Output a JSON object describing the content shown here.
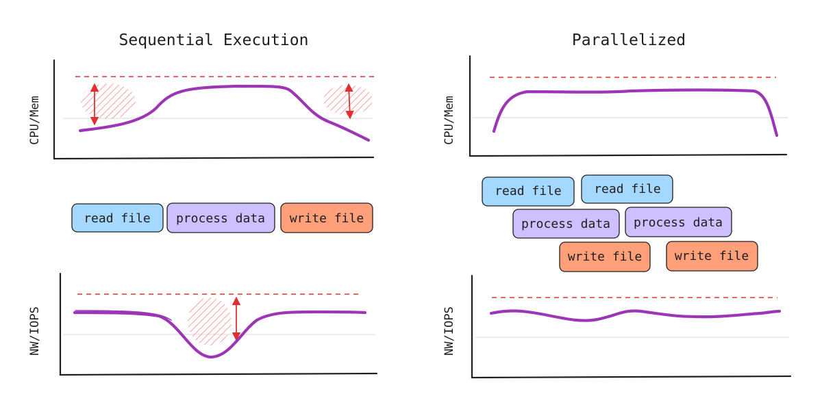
{
  "diagram": {
    "left": {
      "title": "Sequential Execution",
      "top_chart": {
        "ylabel": "CPU/Mem"
      },
      "bottom_chart": {
        "ylabel": "NW/IOPS"
      },
      "tasks": [
        {
          "label": "read file",
          "kind": "read"
        },
        {
          "label": "process data",
          "kind": "process"
        },
        {
          "label": "write file",
          "kind": "write"
        }
      ]
    },
    "right": {
      "title": "Parallelized",
      "top_chart": {
        "ylabel": "CPU/Mem"
      },
      "bottom_chart": {
        "ylabel": "NW/IOPS"
      },
      "tasks": [
        {
          "label": "read file",
          "kind": "read"
        },
        {
          "label": "read file",
          "kind": "read"
        },
        {
          "label": "process data",
          "kind": "process"
        },
        {
          "label": "process data",
          "kind": "process"
        },
        {
          "label": "write file",
          "kind": "write"
        },
        {
          "label": "write file",
          "kind": "write"
        }
      ]
    },
    "colors": {
      "read": "#a5d8ff",
      "process": "#d0bfff",
      "write": "#ffa07a",
      "curve": "#9c36b5",
      "limit": "#e03131"
    }
  }
}
